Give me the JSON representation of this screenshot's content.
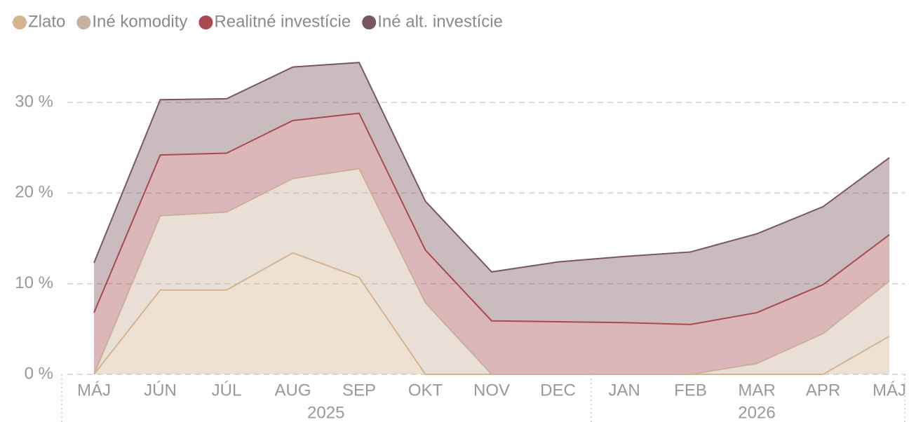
{
  "chart_data": {
    "type": "stacked_area",
    "categories": [
      "MÁJ",
      "JÚN",
      "JÚL",
      "AUG",
      "SEP",
      "OKT",
      "NOV",
      "DEC",
      "JAN",
      "FEB",
      "MAR",
      "APR",
      "MÁJ"
    ],
    "x_groups": [
      {
        "label": "2025",
        "count": 8
      },
      {
        "label": "2026",
        "count": 5
      }
    ],
    "series": [
      {
        "name": "Zlato",
        "color": "#d6b38f",
        "values": [
          0,
          9.3,
          9.3,
          13.4,
          10.7,
          0,
          0,
          0,
          0,
          0,
          0,
          0,
          4.2
        ]
      },
      {
        "name": "Iné komodity",
        "color": "#c9b09a",
        "values": [
          0,
          8.2,
          8.6,
          8.2,
          12.0,
          7.9,
          0,
          0,
          0,
          0,
          1.2,
          4.5,
          6.1
        ]
      },
      {
        "name": "Realitné investície",
        "color": "#a84a50",
        "values": [
          6.8,
          6.7,
          6.5,
          6.4,
          6.1,
          5.8,
          5.9,
          5.8,
          5.7,
          5.5,
          5.6,
          5.4,
          5.1
        ]
      },
      {
        "name": "Iné alt. investície",
        "color": "#7a5660",
        "values": [
          5.5,
          6.1,
          6.0,
          5.9,
          5.6,
          5.4,
          5.4,
          6.6,
          7.3,
          8.0,
          8.7,
          8.6,
          8.5
        ]
      }
    ],
    "ylim": [
      0,
      36
    ],
    "yticks": [
      {
        "value": 0,
        "label": "0 %"
      },
      {
        "value": 10,
        "label": "10 %"
      },
      {
        "value": 20,
        "label": "20 %"
      },
      {
        "value": 30,
        "label": "30 %"
      }
    ],
    "grid": true,
    "legend": "top-left"
  }
}
